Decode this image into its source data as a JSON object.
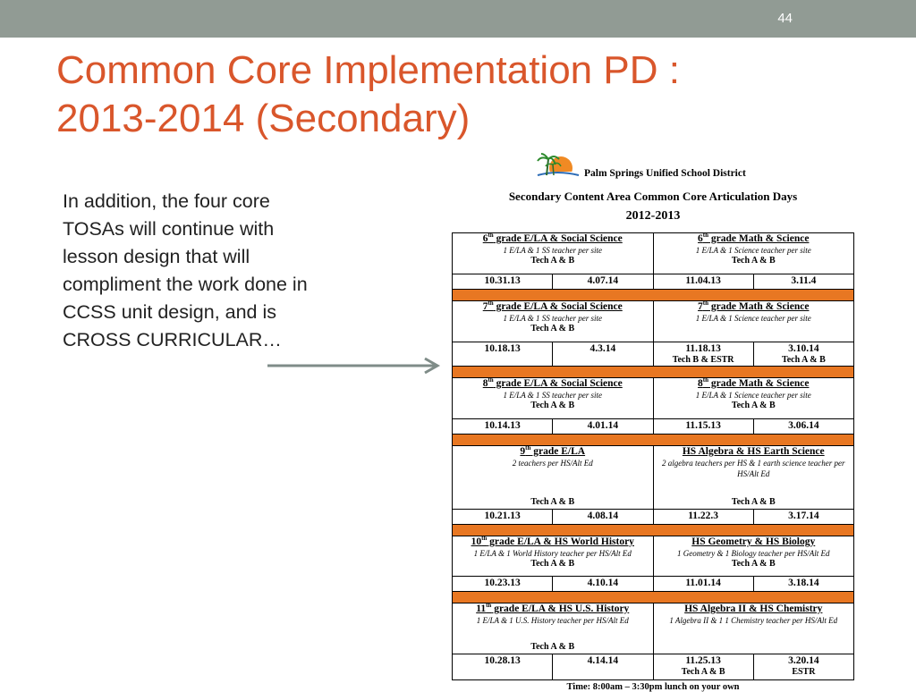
{
  "slide": {
    "number": "44",
    "title_line1": "Common Core Implementation PD :",
    "title_line2": "2013-2014 (Secondary)",
    "body": "In addition, the four core TOSAs will continue with lesson design that will compliment the work done in CCSS unit design, and is CROSS CURRICULAR…"
  },
  "doc": {
    "district": "Palm Springs Unified School District",
    "title": "Secondary Content Area Common Core Articulation Days",
    "year": "2012-2013",
    "blocks": [
      {
        "left": {
          "grade": "6",
          "suffix": "th",
          "name": " grade E/LA & Social Science",
          "sub": "1 E/LA & 1 SS teacher per site",
          "tech": "Tech A & B",
          "d1": "10.31.13",
          "d2": "4.07.14",
          "d1n": "",
          "d2n": ""
        },
        "right": {
          "grade": "6",
          "suffix": "th",
          "name": " grade Math & Science",
          "sub": "1 E/LA & 1 Science teacher per site",
          "tech": "Tech A & B",
          "d1": "11.04.13",
          "d2": "3.11.4",
          "d1n": "",
          "d2n": ""
        }
      },
      {
        "left": {
          "grade": "7",
          "suffix": "th",
          "name": " grade E/LA & Social Science",
          "sub": "1 E/LA & 1 SS teacher per site",
          "tech": "Tech A & B",
          "d1": "10.18.13",
          "d2": "4.3.14",
          "d1n": "",
          "d2n": ""
        },
        "right": {
          "grade": "7",
          "suffix": "th",
          "name": " grade Math & Science",
          "sub": "1 E/LA & 1 Science teacher per site",
          "tech": "",
          "d1": "11.18.13",
          "d2": "3.10.14",
          "d1n": "Tech B & ESTR",
          "d2n": "Tech A & B"
        }
      },
      {
        "left": {
          "grade": "8",
          "suffix": "th",
          "name": " grade E/LA & Social Science",
          "sub": "1 E/LA & 1 SS teacher per site",
          "tech": "Tech A & B",
          "d1": "10.14.13",
          "d2": "4.01.14",
          "d1n": "",
          "d2n": ""
        },
        "right": {
          "grade": "8",
          "suffix": "th",
          "name": " grade Math & Science",
          "sub": "1 E/LA & 1 Science teacher per site",
          "tech": "Tech A & B",
          "d1": "11.15.13",
          "d2": "3.06.14",
          "d1n": "",
          "d2n": ""
        }
      },
      {
        "left": {
          "grade": "9",
          "suffix": "th",
          "name": " grade E/LA",
          "sub": "2 teachers per HS/Alt Ed",
          "tech": "Tech A & B",
          "d1": "10.21.13",
          "d2": "4.08.14",
          "d1n": "",
          "d2n": ""
        },
        "right": {
          "grade": "",
          "suffix": "",
          "name": "HS Algebra & HS Earth Science",
          "sub": "2 algebra teachers per HS & 1 earth science teacher per HS/Alt Ed",
          "tech": "Tech A & B",
          "d1": "11.22.3",
          "d2": "3.17.14",
          "d1n": "",
          "d2n": ""
        }
      },
      {
        "left": {
          "grade": "10",
          "suffix": "th",
          "name": " grade E/LA & HS World History",
          "sub": "1 E/LA & 1 World History teacher per HS/Alt Ed",
          "tech": "Tech A & B",
          "d1": "10.23.13",
          "d2": "4.10.14",
          "d1n": "",
          "d2n": ""
        },
        "right": {
          "grade": "",
          "suffix": "",
          "name": "HS Geometry & HS Biology",
          "sub": "1 Geometry & 1 Biology teacher per HS/Alt Ed",
          "tech": "Tech A & B",
          "d1": "11.01.14",
          "d2": "3.18.14",
          "d1n": "",
          "d2n": ""
        }
      },
      {
        "left": {
          "grade": "11",
          "suffix": "th",
          "name": " grade E/LA & HS U.S. History",
          "sub": "1 E/LA & 1 U.S. History teacher per HS/Alt Ed",
          "tech": "Tech A & B",
          "d1": "10.28.13",
          "d2": "4.14.14",
          "d1n": "",
          "d2n": ""
        },
        "right": {
          "grade": "",
          "suffix": "",
          "name": "HS Algebra II & HS Chemistry",
          "sub": "1 Algebra II & 1 1 Chemistry teacher per HS/Alt Ed",
          "tech": "",
          "d1": "11.25.13",
          "d2": "3.20.14",
          "d1n": "Tech A & B",
          "d2n": "ESTR"
        }
      }
    ],
    "time": "Time: 8:00am – 3:30pm lunch on your own"
  },
  "colors": {
    "topbar": "#919b94",
    "title": "#d9562b",
    "separator": "#e87722",
    "arrow": "#7f8c88"
  }
}
